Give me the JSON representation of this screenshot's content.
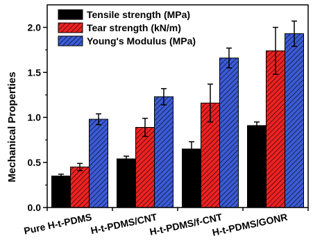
{
  "chart_data": {
    "type": "bar",
    "title": "",
    "xlabel": "",
    "ylabel": "Mechanical Properties",
    "ylim": [
      0.0,
      2.25
    ],
    "yticks": [
      "0.0",
      "0.5",
      "1.0",
      "1.5",
      "2.0"
    ],
    "categories": [
      "Pure H-t-PDMS",
      "H-t-PDMS/CNT",
      "H-t-PDMS/f-CNT",
      "H-t-PDMS/GONR"
    ],
    "legend_position": "top-left",
    "grid": false,
    "series": [
      {
        "name": "Tensile strength (MPa)",
        "color": "#000000",
        "pattern": "solid",
        "values": [
          0.35,
          0.54,
          0.65,
          0.91
        ],
        "errors": [
          0.02,
          0.03,
          0.08,
          0.04
        ]
      },
      {
        "name": "Tear strength (kN/m)",
        "color": "#ee2222",
        "pattern": "hatch",
        "values": [
          0.45,
          0.89,
          1.16,
          1.74
        ],
        "errors": [
          0.04,
          0.1,
          0.21,
          0.26
        ]
      },
      {
        "name": "Young's Modulus (MPa)",
        "color": "#3b5bd6",
        "pattern": "hatch",
        "values": [
          0.98,
          1.23,
          1.66,
          1.93
        ],
        "errors": [
          0.06,
          0.09,
          0.11,
          0.14
        ]
      }
    ]
  }
}
